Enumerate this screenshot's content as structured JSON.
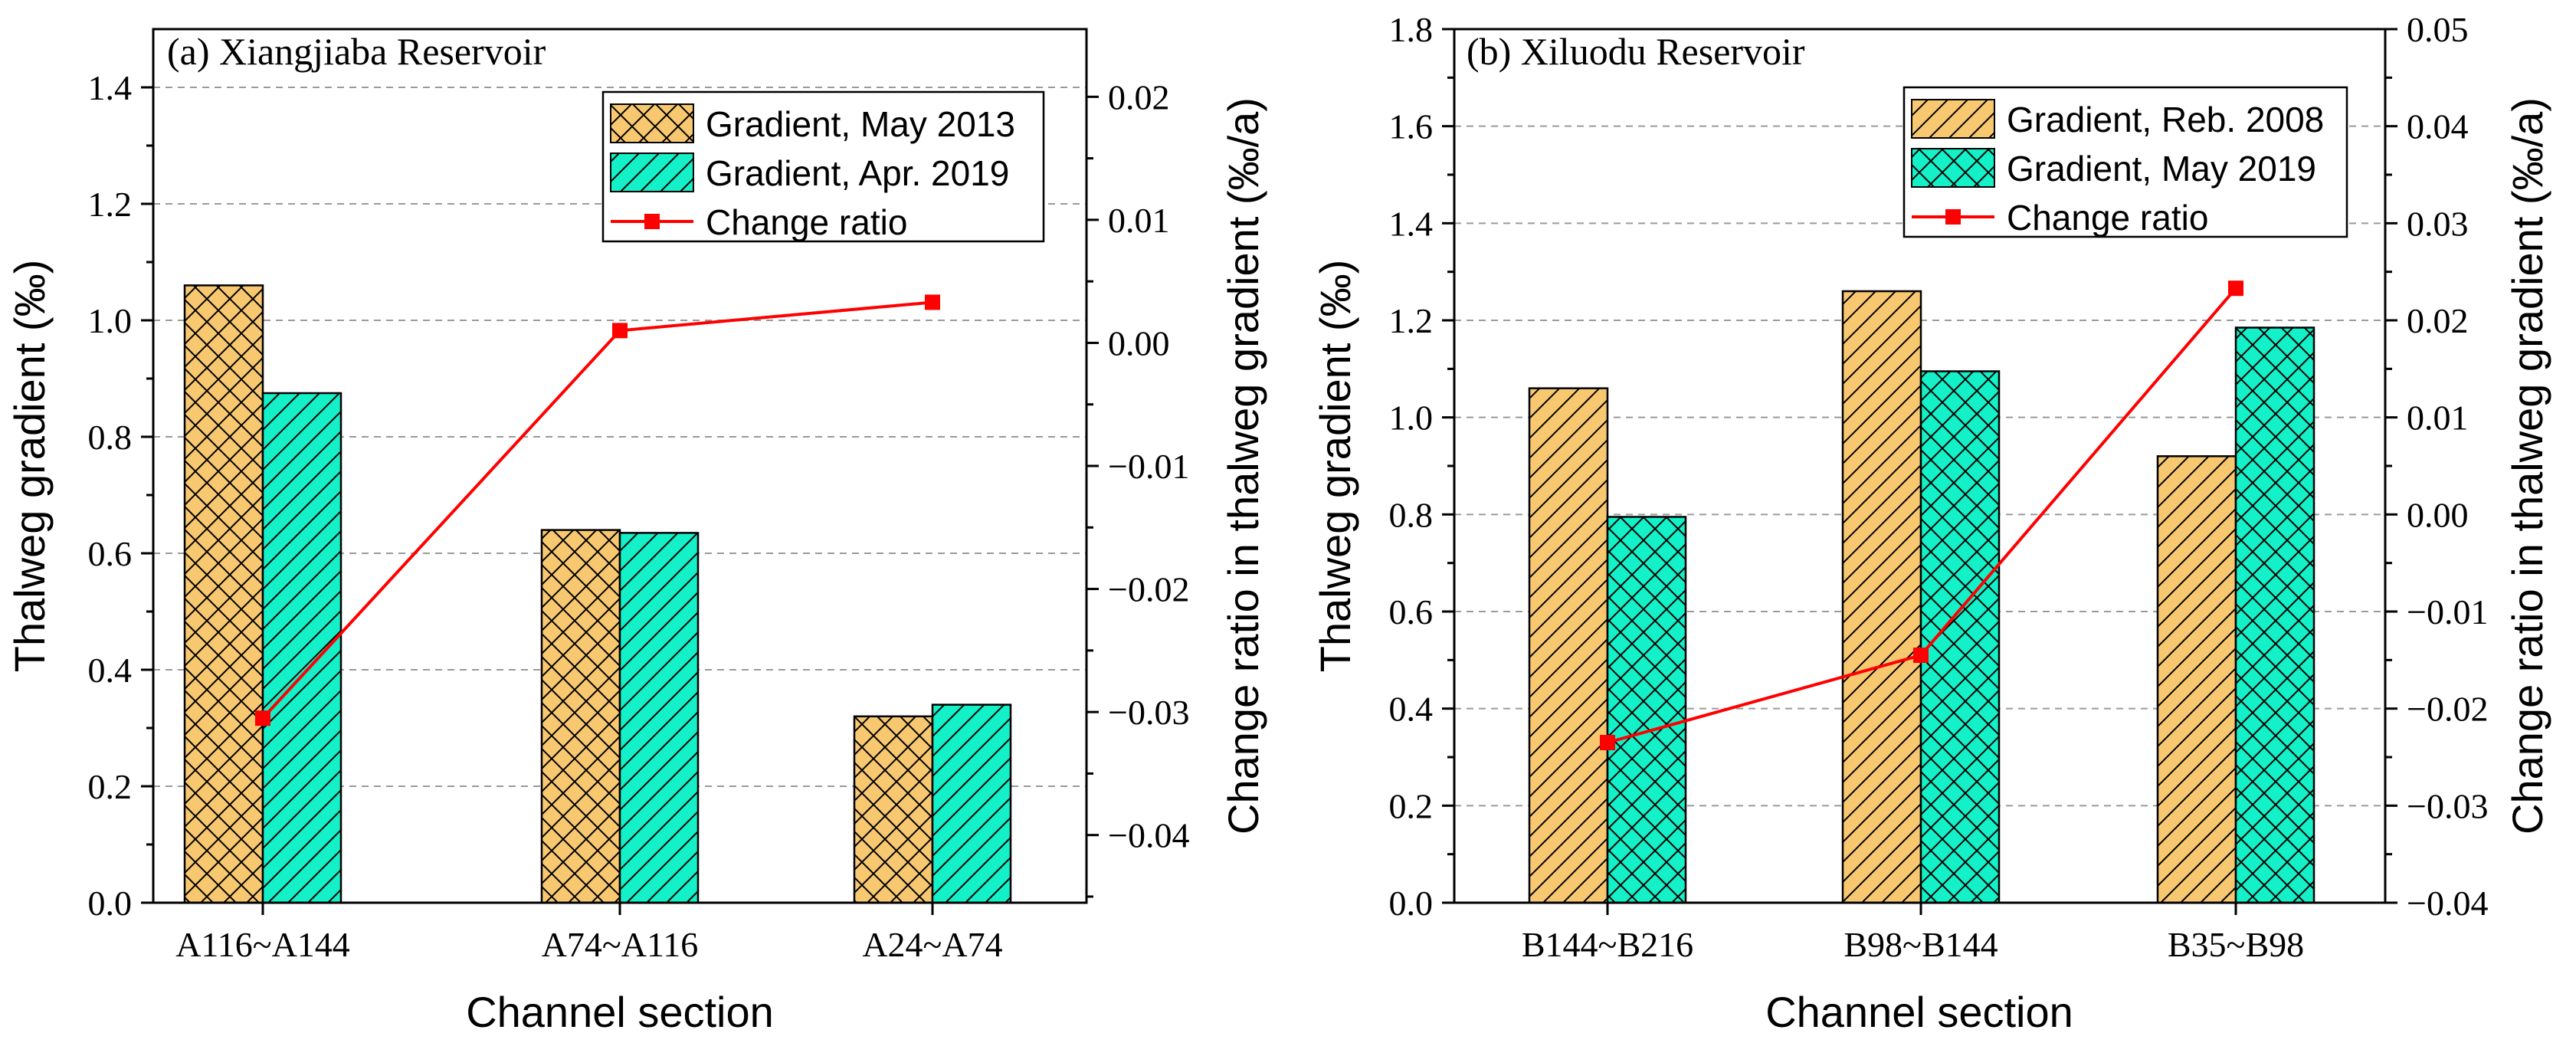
{
  "chart_data": [
    {
      "type": "bar",
      "panel": "a",
      "title": "(a) Xiangjiaba Reservoir",
      "xlabel": "Channel section",
      "ylabel": "Thalweg gradient (‰)",
      "y2label": "Change ratio in thalweg gradient (‰/a)",
      "categories": [
        "A116~A144",
        "A74~A116",
        "A24~A74"
      ],
      "ylim": [
        0,
        1.5
      ],
      "yticks": [
        "0.0",
        "0.2",
        "0.4",
        "0.6",
        "0.8",
        "1.0",
        "1.2",
        "1.4"
      ],
      "y2lim": [
        -0.0455,
        0.0255
      ],
      "y2ticks": [
        "0.02",
        "0.01",
        "0.00",
        "−0.01",
        "−0.02",
        "−0.03",
        "−0.04"
      ],
      "grid": true,
      "legend_position": "top-right",
      "series": [
        {
          "name": "Gradient, May 2013",
          "values": [
            1.06,
            0.64,
            0.32
          ],
          "color": "#f8c870",
          "hatch": "crosshatch"
        },
        {
          "name": "Gradient, Apr. 2019",
          "values": [
            0.875,
            0.635,
            0.34
          ],
          "color": "#14f0c8",
          "hatch": "diagonal"
        }
      ],
      "line_series": {
        "name": "Change ratio",
        "values": [
          -0.0305,
          0.001,
          0.0033
        ],
        "color": "#ff0000",
        "axis": "right"
      }
    },
    {
      "type": "bar",
      "panel": "b",
      "title": "(b) Xiluodu Reservoir",
      "xlabel": "Channel section",
      "ylabel": "Thalweg gradient (‰)",
      "y2label": "Change ratio in thalweg gradient (‰/a)",
      "categories": [
        "B144~B216",
        "B98~B144",
        "B35~B98"
      ],
      "ylim": [
        0,
        1.8
      ],
      "yticks": [
        "0.0",
        "0.2",
        "0.4",
        "0.6",
        "0.8",
        "1.0",
        "1.2",
        "1.4",
        "1.6",
        "1.8"
      ],
      "y2lim": [
        -0.04,
        0.05
      ],
      "y2ticks": [
        "0.05",
        "0.04",
        "0.03",
        "0.02",
        "0.01",
        "0.00",
        "−0.01",
        "−0.02",
        "−0.03",
        "−0.04"
      ],
      "grid": true,
      "legend_position": "top-right",
      "series": [
        {
          "name": "Gradient, Reb. 2008",
          "values": [
            1.06,
            1.26,
            0.92
          ],
          "color": "#f8c870",
          "hatch": "diagonal"
        },
        {
          "name": "Gradient, May 2019",
          "values": [
            0.795,
            1.095,
            1.185
          ],
          "color": "#14f0c8",
          "hatch": "crosshatch"
        }
      ],
      "line_series": {
        "name": "Change ratio",
        "values": [
          -0.0235,
          -0.0145,
          0.0233
        ],
        "color": "#ff0000",
        "axis": "right"
      }
    }
  ]
}
